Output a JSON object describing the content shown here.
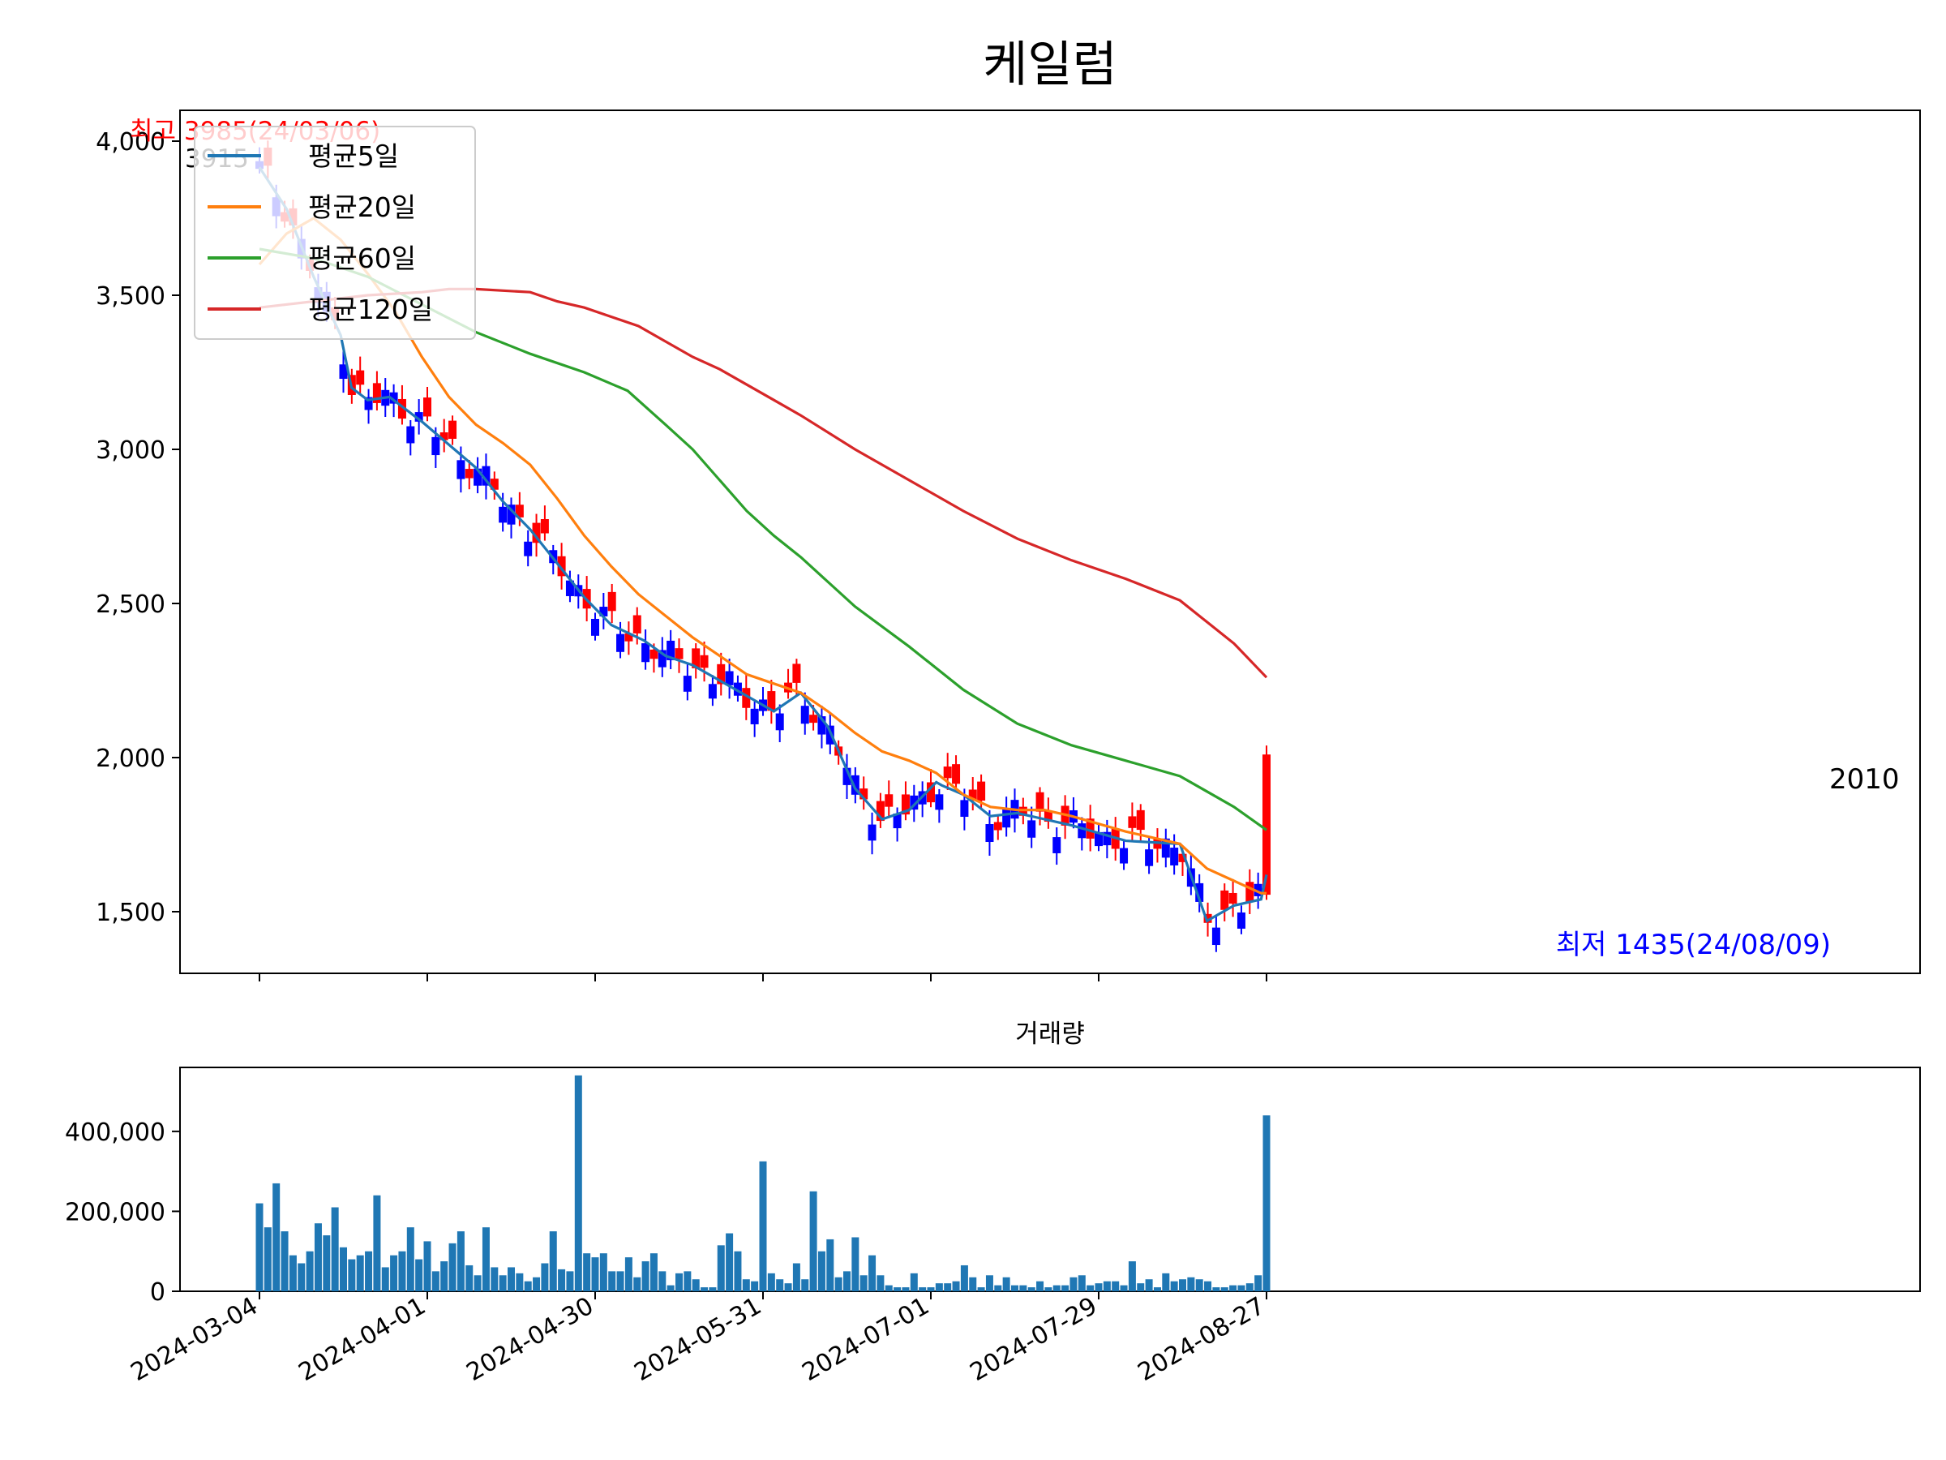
{
  "chart_data": [
    {
      "type": "candlestick",
      "title": "케일럼",
      "xlabel": "",
      "ylabel": "",
      "ylim": [
        1300,
        4100
      ],
      "y_ticks": [
        1500,
        2000,
        2500,
        3000,
        3500,
        4000
      ],
      "y_tick_labels": [
        "1,500",
        "2,000",
        "2,500",
        "3,000",
        "3,500",
        "4,000"
      ],
      "x_tick_labels": [
        "2024-03-04",
        "2024-04-01",
        "2024-04-30",
        "2024-05-31",
        "2024-07-01",
        "2024-07-29",
        "2024-08-27"
      ],
      "up_color": "#ff0000",
      "down_color": "#0000ff",
      "legend": {
        "location": "upper-left",
        "entries": [
          "평균5일",
          "평균20일",
          "평균60일",
          "평균120일"
        ]
      },
      "ma_colors": [
        "#1f77b4",
        "#ff7f0e",
        "#2ca02c",
        "#d62728"
      ],
      "annotations": {
        "high": "최고 3985(24/03/06)",
        "low": "최저 1435(24/08/09)",
        "first_close": "3915",
        "last_close": "2010"
      },
      "ma_series": [
        {
          "name": "평균5일",
          "x": [
            0,
            5,
            10,
            15,
            17,
            20,
            24,
            30,
            40,
            45,
            50,
            60,
            65,
            71,
            75,
            80,
            85,
            90,
            95,
            100,
            105,
            110,
            115,
            120,
            125,
            126,
            130,
            135,
            140,
            145,
            150,
            160,
            170,
            175,
            180,
            185,
            186
          ],
          "y": [
            3915,
            3780,
            3560,
            3370,
            3200,
            3160,
            3170,
            3090,
            2940,
            2830,
            2740,
            2520,
            2430,
            2380,
            2330,
            2300,
            2250,
            2200,
            2150,
            2210,
            2100,
            1900,
            1800,
            1830,
            1920,
            1910,
            1880,
            1810,
            1820,
            1800,
            1780,
            1730,
            1720,
            1470,
            1520,
            1540,
            1620
          ]
        },
        {
          "name": "평균20일",
          "x": [
            0,
            5,
            10,
            15,
            20,
            25,
            30,
            35,
            40,
            45,
            50,
            55,
            60,
            65,
            70,
            75,
            80,
            85,
            90,
            95,
            100,
            105,
            110,
            115,
            120,
            125,
            130,
            135,
            140,
            145,
            150,
            160,
            170,
            175,
            180,
            185,
            186
          ],
          "y": [
            3600,
            3700,
            3750,
            3680,
            3570,
            3450,
            3300,
            3170,
            3080,
            3020,
            2950,
            2840,
            2720,
            2620,
            2530,
            2460,
            2390,
            2330,
            2270,
            2240,
            2210,
            2150,
            2080,
            2020,
            1990,
            1950,
            1880,
            1840,
            1830,
            1830,
            1810,
            1760,
            1720,
            1640,
            1600,
            1560,
            1560
          ]
        },
        {
          "name": "평균60일",
          "x": [
            0,
            10,
            20,
            30,
            40,
            50,
            60,
            68,
            75,
            80,
            85,
            90,
            95,
            100,
            110,
            120,
            130,
            140,
            150,
            160,
            170,
            175,
            180,
            186
          ],
          "y": [
            3650,
            3620,
            3560,
            3470,
            3380,
            3310,
            3250,
            3190,
            3080,
            3000,
            2900,
            2800,
            2720,
            2650,
            2490,
            2360,
            2220,
            2110,
            2040,
            1990,
            1940,
            1890,
            1840,
            1765
          ]
        },
        {
          "name": "평균120일",
          "x": [
            0,
            10,
            20,
            30,
            35,
            40,
            45,
            50,
            55,
            60,
            70,
            75,
            80,
            85,
            90,
            95,
            100,
            110,
            120,
            130,
            140,
            150,
            160,
            170,
            175,
            180,
            186
          ],
          "y": [
            3460,
            3480,
            3500,
            3510,
            3520,
            3520,
            3515,
            3510,
            3480,
            3460,
            3400,
            3350,
            3300,
            3260,
            3210,
            3160,
            3110,
            3000,
            2900,
            2800,
            2710,
            2640,
            2580,
            2510,
            2440,
            2370,
            2260
          ]
        }
      ]
    },
    {
      "type": "bar",
      "title": "거래량",
      "ylim": [
        0,
        560000
      ],
      "y_ticks": [
        0,
        200000,
        400000
      ],
      "y_tick_labels": [
        "0",
        "200,000",
        "400,000"
      ],
      "color": "#1f77b4",
      "values": [
        220000,
        160000,
        270000,
        150000,
        90000,
        70000,
        100000,
        170000,
        140000,
        210000,
        110000,
        80000,
        90000,
        100000,
        240000,
        60000,
        90000,
        100000,
        160000,
        80000,
        125000,
        50000,
        75000,
        120000,
        150000,
        65000,
        40000,
        160000,
        60000,
        40000,
        60000,
        45000,
        25000,
        35000,
        70000,
        150000,
        55000,
        50000,
        540000,
        95000,
        85000,
        95000,
        50000,
        50000,
        85000,
        35000,
        75000,
        95000,
        50000,
        15000,
        45000,
        50000,
        30000,
        10000,
        10000,
        115000,
        145000,
        100000,
        30000,
        25000,
        325000,
        45000,
        30000,
        20000,
        70000,
        30000,
        250000,
        100000,
        130000,
        35000,
        50000,
        135000,
        40000,
        90000,
        40000,
        15000,
        10000,
        10000,
        45000,
        10000,
        10000,
        20000,
        20000,
        25000,
        65000,
        35000,
        10000,
        40000,
        15000,
        35000,
        15000,
        15000,
        10000,
        25000,
        10000,
        15000,
        15000,
        35000,
        40000,
        15000,
        20000,
        25000,
        25000,
        15000,
        75000,
        20000,
        30000,
        10000,
        45000,
        25000,
        30000,
        35000,
        30000,
        25000,
        10000,
        10000,
        15000,
        15000,
        20000,
        40000,
        440000
      ]
    }
  ]
}
